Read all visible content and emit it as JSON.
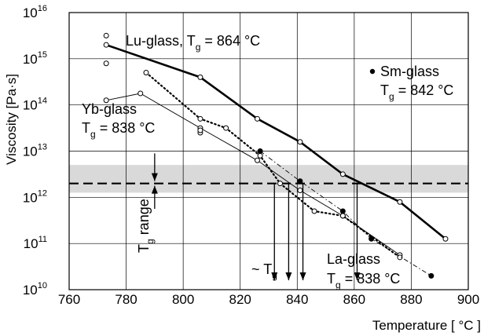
{
  "chart_data": {
    "type": "line",
    "title": "",
    "xlabel": "Temperature [ °C ]",
    "ylabel": "Viscosity [Pa·s]",
    "xlim": [
      760,
      900
    ],
    "ylim_log10": [
      10,
      16
    ],
    "y_log_scale": true,
    "x_ticks": [
      "760",
      "780",
      "800",
      "820",
      "840",
      "860",
      "880",
      "900"
    ],
    "y_ticks": [
      {
        "base": "10",
        "exp": "10"
      },
      {
        "base": "10",
        "exp": "11"
      },
      {
        "base": "10",
        "exp": "12"
      },
      {
        "base": "10",
        "exp": "13"
      },
      {
        "base": "10",
        "exp": "14"
      },
      {
        "base": "10",
        "exp": "15"
      },
      {
        "base": "10",
        "exp": "16"
      }
    ],
    "grid": true,
    "tg_band_log10": [
      12.1,
      12.7
    ],
    "tg_reference_log10": 12.3,
    "series": [
      {
        "name": "Lu-glass",
        "style": "bold",
        "points": [
          [
            773,
            15.3
          ],
          [
            806,
            14.6
          ],
          [
            826,
            13.7
          ],
          [
            841,
            13.2
          ],
          [
            856,
            12.5
          ],
          [
            876,
            11.9
          ],
          [
            892,
            11.1
          ]
        ],
        "extra_points": [
          [
            773,
            15.5
          ],
          [
            773,
            14.9
          ]
        ]
      },
      {
        "name": "Yb-glass",
        "style": "thin",
        "points": [
          [
            773,
            14.1
          ],
          [
            785,
            14.25
          ],
          [
            806,
            13.5
          ],
          [
            826,
            12.8
          ],
          [
            841,
            12.15
          ],
          [
            856,
            11.6
          ],
          [
            876,
            10.75
          ]
        ],
        "extra_points": [
          [
            806,
            13.4
          ],
          [
            806,
            13.45
          ]
        ]
      },
      {
        "name": "La-glass",
        "style": "dotted",
        "points": [
          [
            787,
            14.7
          ],
          [
            806,
            13.7
          ],
          [
            815,
            13.5
          ],
          [
            827,
            12.9
          ],
          [
            834,
            12.3
          ],
          [
            846,
            11.7
          ],
          [
            856,
            11.6
          ],
          [
            876,
            10.7
          ]
        ]
      },
      {
        "name": "Sm-glass",
        "style": "dash-dot",
        "points": [
          [
            827,
            13.0
          ],
          [
            841,
            12.35
          ],
          [
            856,
            11.7
          ],
          [
            866,
            11.1
          ],
          [
            887,
            10.3
          ]
        ]
      }
    ],
    "tg_arrows_x": [
      790,
      832,
      837,
      842,
      861
    ],
    "annotations": {
      "lu": {
        "name": "Lu-glass, T",
        "sub": "g",
        "rest": " = 864 °C"
      },
      "sm_name": "Sm-glass",
      "sm": {
        "name": "T",
        "sub": "g",
        "rest": " = 842 °C"
      },
      "yb_name": "Yb-glass",
      "yb": {
        "name": "T",
        "sub": "g",
        "rest": " = 838 °C"
      },
      "la_name": "La-glass",
      "la": {
        "name": "T",
        "sub": "g",
        "rest": " = 838 °C"
      },
      "tg_approx": {
        "name": "~ T",
        "sub": "g"
      },
      "tg_range": {
        "name": "T",
        "sub": "g",
        "rest": " range"
      }
    }
  },
  "colors": {
    "line": "#000000",
    "band": "#d9d9d9",
    "grid": "#000000",
    "marker_fill_open": "#ffffff",
    "marker_fill_closed": "#000000"
  }
}
